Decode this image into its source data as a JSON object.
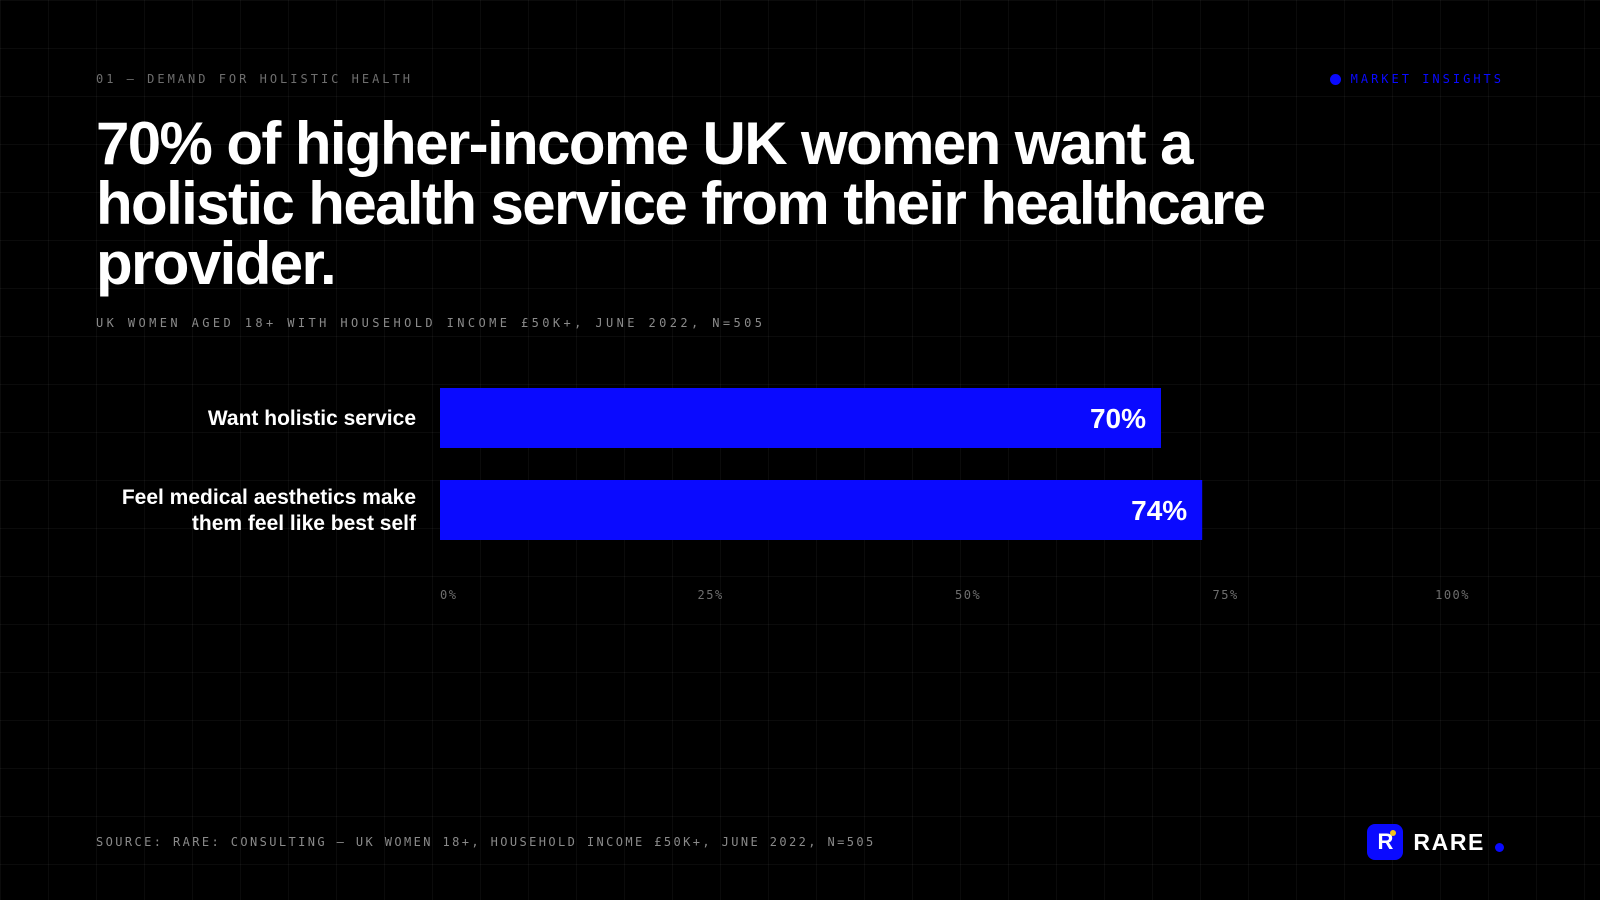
{
  "eyebrow": "01 — DEMAND FOR HOLISTIC HEALTH",
  "section_tag": "MARKET INSIGHTS",
  "headline": "70% of higher-income UK women want a holistic health service from their healthcare provider.",
  "subtitle": "UK WOMEN AGED 18+ WITH HOUSEHOLD INCOME £50K+, JUNE 2022, N=505",
  "source": "SOURCE: RARE: CONSULTING — UK WOMEN 18+, HOUSEHOLD INCOME £50K+, JUNE 2022, N=505",
  "logo": {
    "mark": "R",
    "word": "RARE"
  },
  "colors": {
    "accent": "#0a0aff",
    "background": "#000000",
    "text": "#ffffff",
    "logo_spark": "#f0c419"
  },
  "chart_data": {
    "type": "bar",
    "orientation": "horizontal",
    "categories": [
      [
        "Want holistic service"
      ],
      [
        "Feel medical aesthetics make",
        "them feel like best self"
      ]
    ],
    "values": [
      70,
      74
    ],
    "value_labels": [
      "70%",
      "74%"
    ],
    "xlim": [
      0,
      100
    ],
    "xticks": [
      0,
      25,
      50,
      75,
      100
    ],
    "xtick_labels": [
      "0%",
      "25%",
      "50%",
      "75%",
      "100%"
    ],
    "bar_color": "#0a0aff",
    "grid": false,
    "legend": "none"
  }
}
